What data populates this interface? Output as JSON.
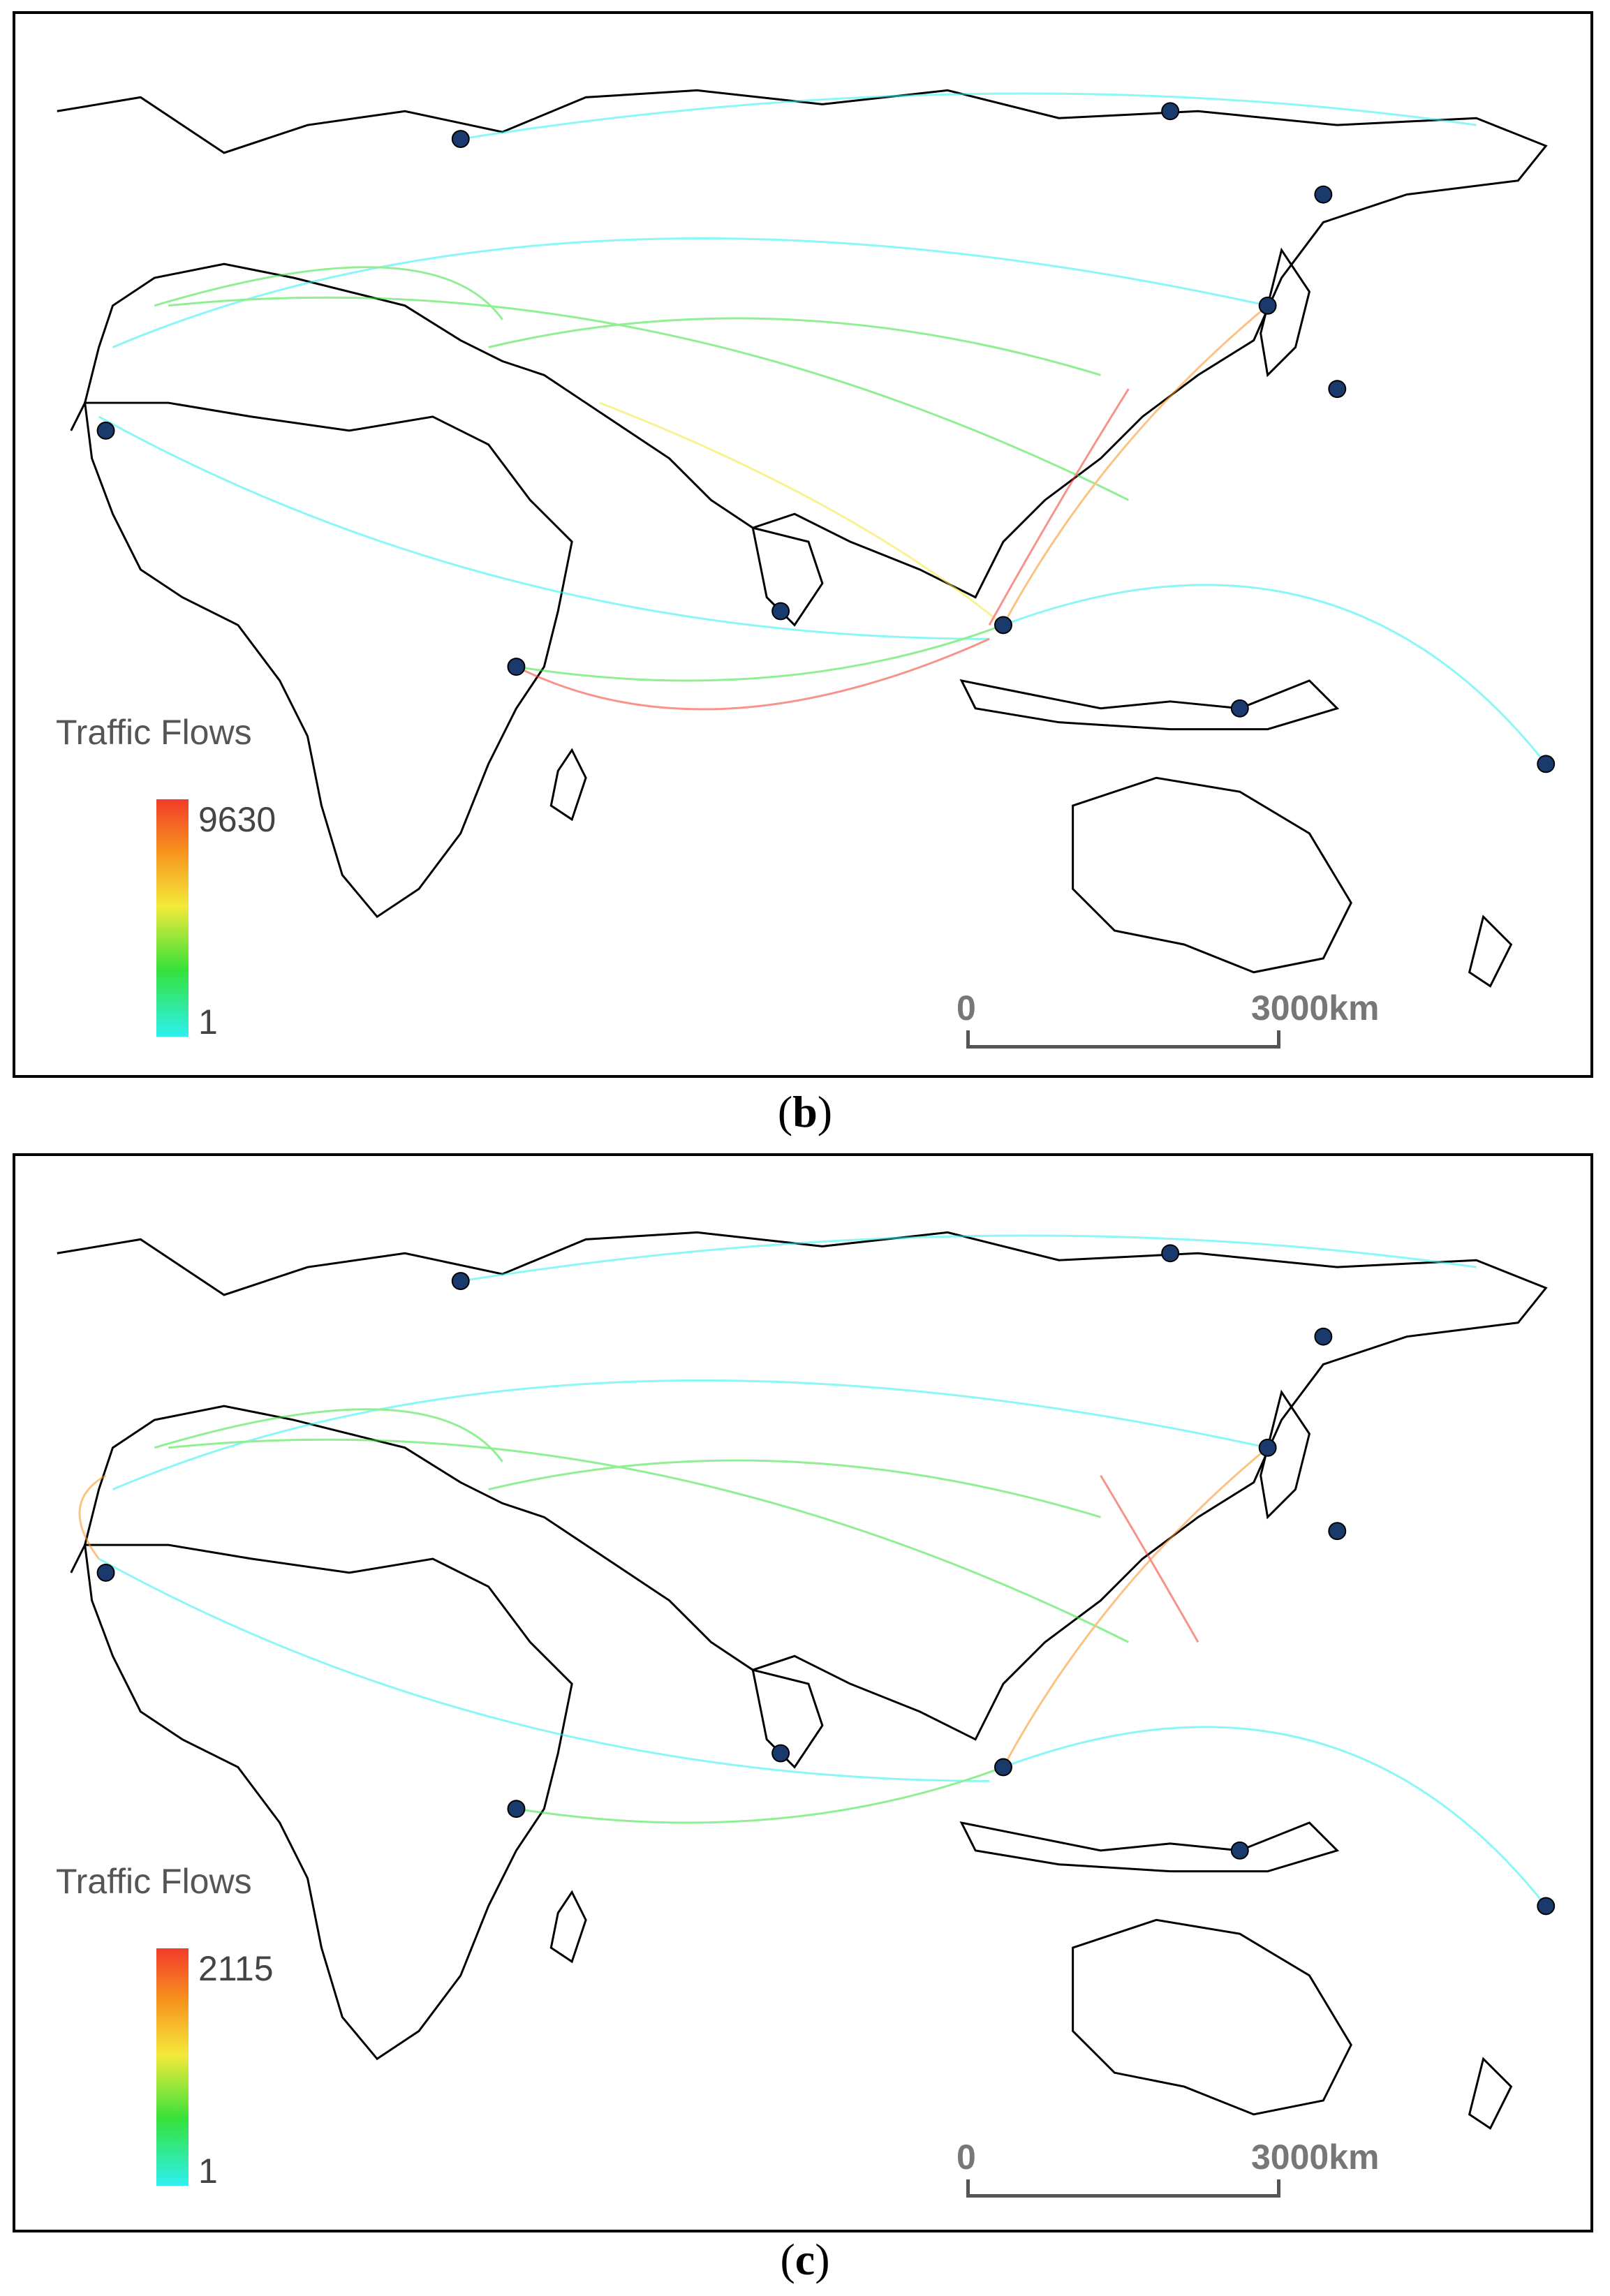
{
  "panels": [
    {
      "caption_letter": "b",
      "legend": {
        "title": "Traffic Flows",
        "max": "9630",
        "min": "1"
      },
      "scale_bar": {
        "zero": "0",
        "distance": "3000km"
      }
    },
    {
      "caption_letter": "c",
      "legend": {
        "title": "Traffic Flows",
        "max": "2115",
        "min": "1"
      },
      "scale_bar": {
        "zero": "0",
        "distance": "3000km"
      }
    }
  ],
  "colors": {
    "flow_low": "#2ef0f0",
    "flow_mid_low": "#35e23a",
    "flow_mid": "#f4e93a",
    "flow_mid_high": "#f7931e",
    "flow_high": "#f23b2a",
    "port_node": "#1a3a6e",
    "coastline": "#000000"
  }
}
